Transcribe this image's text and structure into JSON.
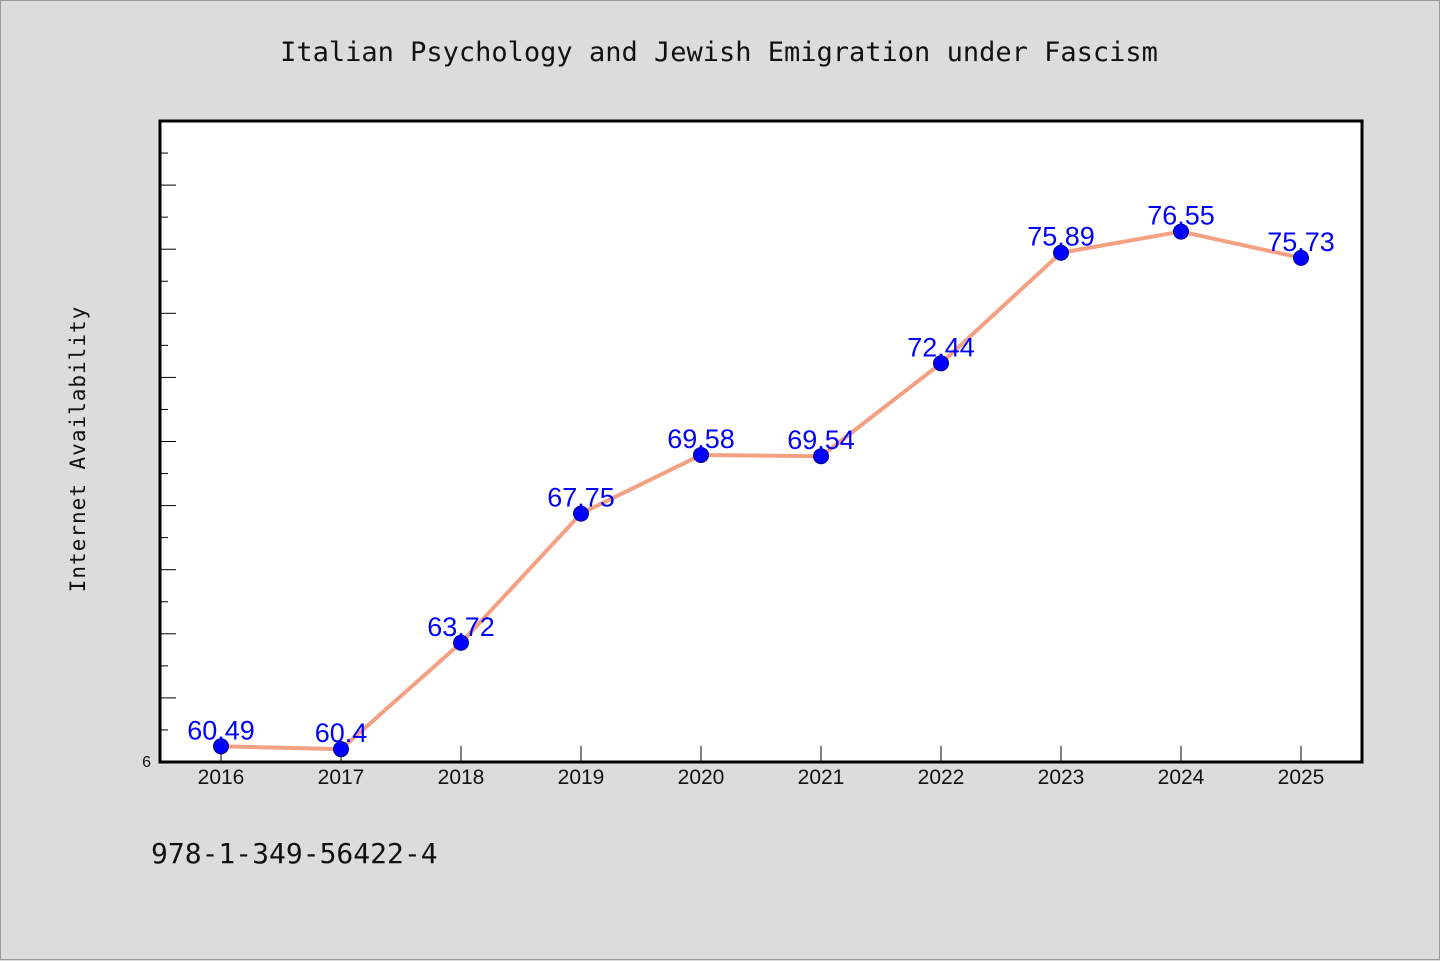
{
  "chart_data": {
    "type": "line",
    "title": "Italian Psychology and Jewish Emigration under Fascism",
    "xlabel": "",
    "ylabel": "Internet Availability",
    "categories": [
      "2016",
      "2017",
      "2018",
      "2019",
      "2020",
      "2021",
      "2022",
      "2023",
      "2024",
      "2025"
    ],
    "series": [
      {
        "values": [
          60.49,
          60.4,
          63.72,
          67.75,
          69.58,
          69.54,
          72.44,
          75.89,
          76.55,
          75.73
        ],
        "data_labels": [
          "60.49",
          "60.4",
          "63.72",
          "67.75",
          "69.58",
          "69.54",
          "72.44",
          "75.89",
          "76.55",
          "75.73"
        ]
      }
    ],
    "ylim": [
      60,
      80
    ],
    "y_tick_labels": [
      "6"
    ],
    "grid": false,
    "legend": "none",
    "colors": {
      "line": "#f4a183",
      "marker": "#0000ff",
      "marker_edge": "#00008b",
      "data_label": "#0000ff",
      "plot_background": "#ffffff",
      "figure_background": "#dcdcdc"
    }
  },
  "footer": {
    "isbn": "978-1-349-56422-4"
  }
}
